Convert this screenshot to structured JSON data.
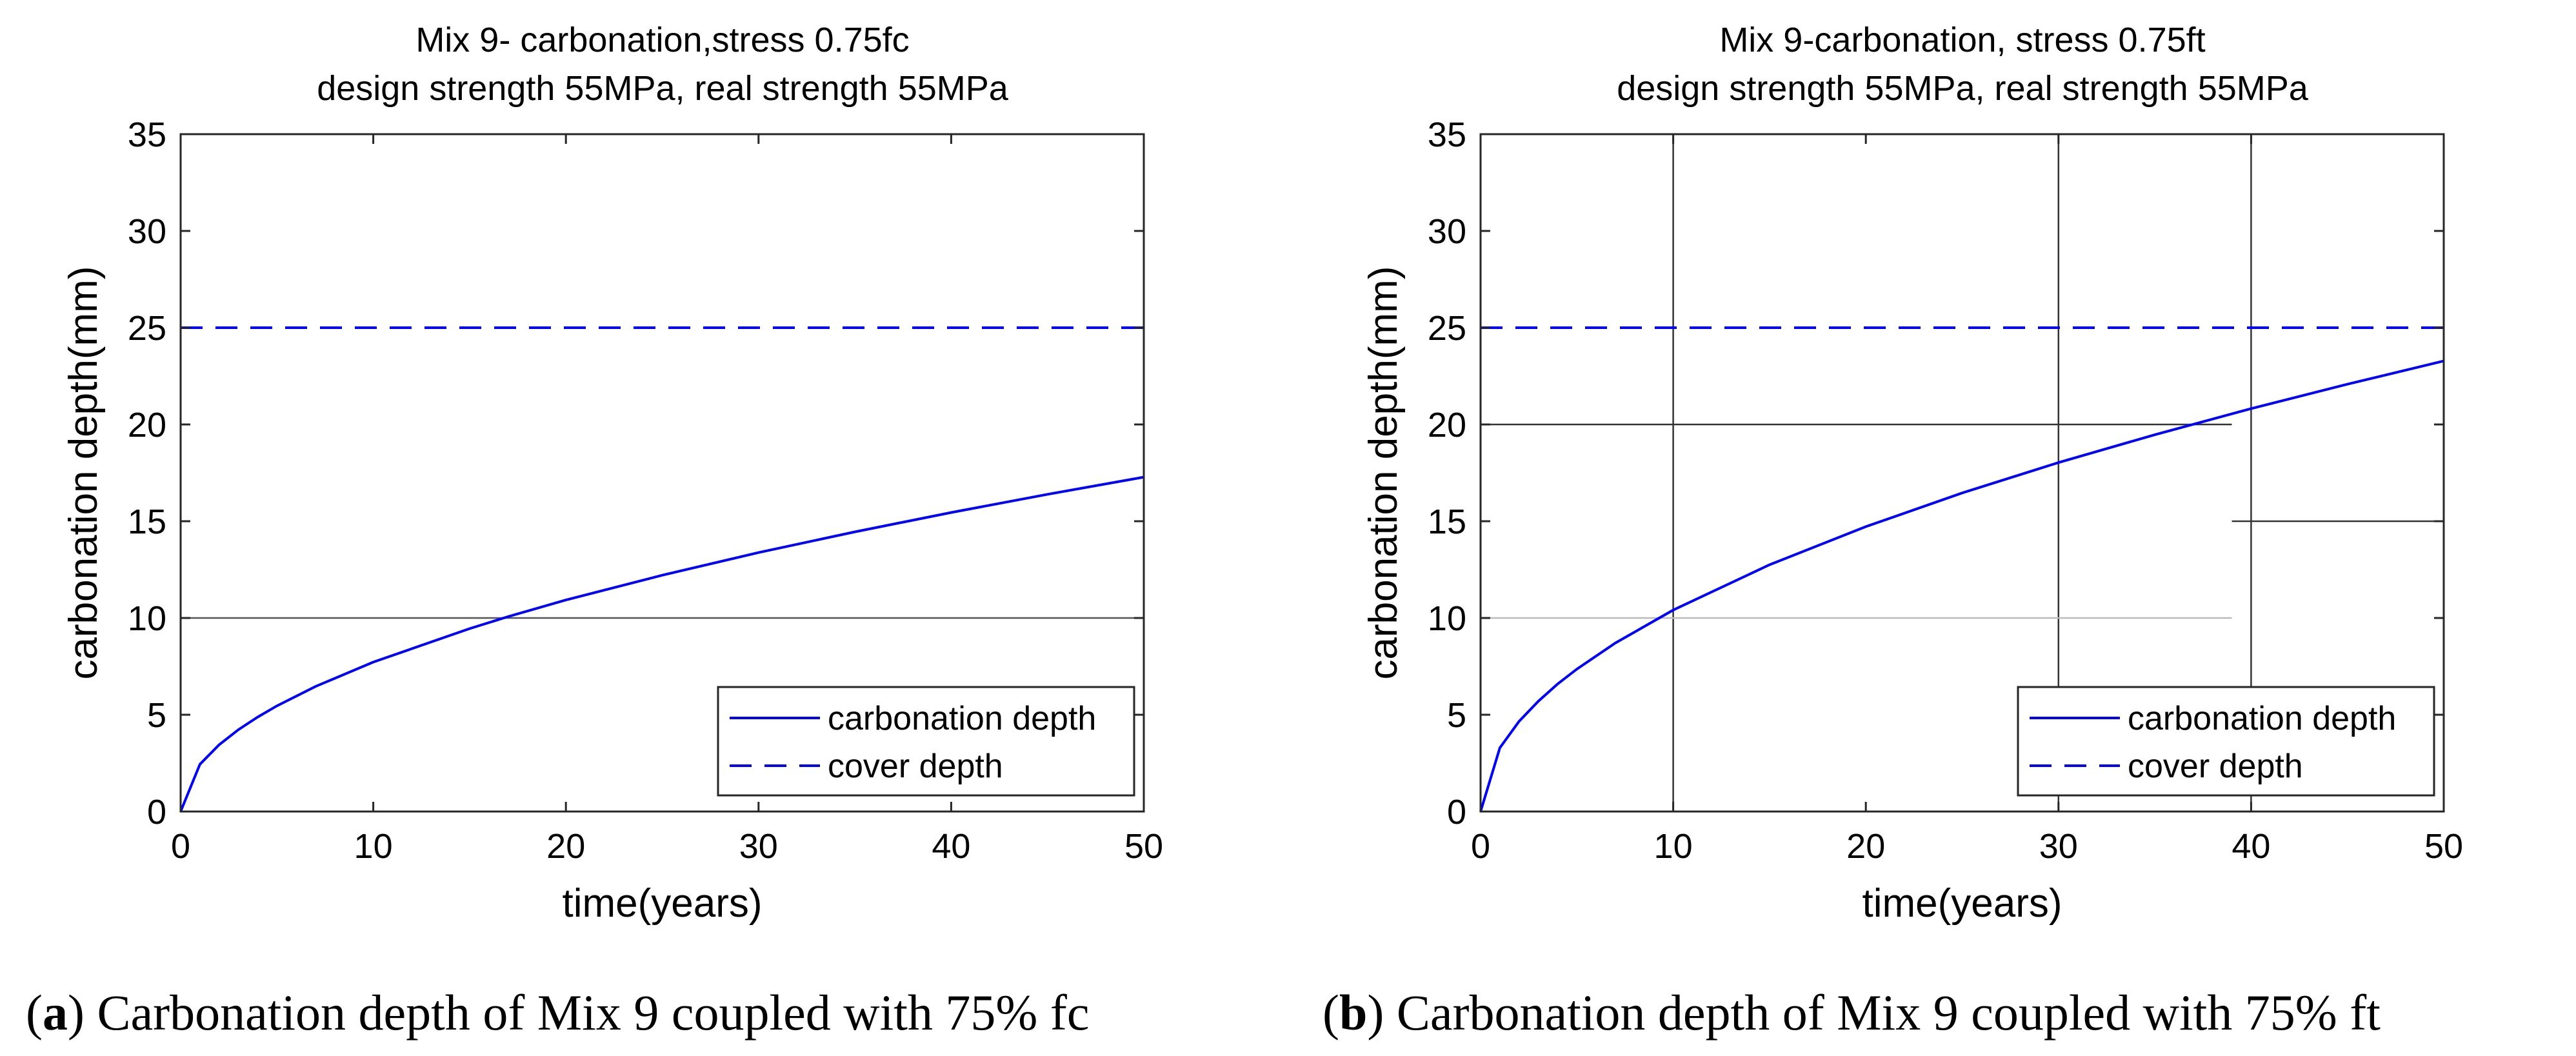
{
  "chart_data": [
    {
      "type": "line",
      "title": [
        "Mix 9- carbonation,stress 0.75fc",
        "design strength 55MPa, real strength 55MPa"
      ],
      "xlabel": "time(years)",
      "ylabel": "carbonation depth(mm)",
      "xlim": [
        0,
        50
      ],
      "ylim": [
        0,
        35
      ],
      "xticks": [
        0,
        10,
        20,
        30,
        40,
        50
      ],
      "yticks": [
        0,
        5,
        10,
        15,
        20,
        25,
        30,
        35
      ],
      "grid": false,
      "legend_position": "bottom-right",
      "series": [
        {
          "name": "carbonation depth",
          "style": "solid",
          "color": "#0000ff",
          "x": [
            0,
            1,
            2,
            3,
            4,
            5,
            7,
            10,
            15,
            17,
            20,
            25,
            30,
            35,
            40,
            45,
            50
          ],
          "y": [
            0,
            2.44,
            3.45,
            4.23,
            4.88,
            5.46,
            6.46,
            7.72,
            9.45,
            10.07,
            10.93,
            12.21,
            13.38,
            14.45,
            15.45,
            16.39,
            17.28
          ]
        },
        {
          "name": "cover depth",
          "style": "dashed",
          "color": "#0000ff",
          "x": [
            0,
            50
          ],
          "y": [
            25,
            25
          ]
        }
      ],
      "annotations": [
        {
          "type": "hline",
          "y": 10,
          "x": [
            0,
            50
          ],
          "color": "#555555"
        }
      ]
    },
    {
      "type": "line",
      "title": [
        "Mix 9-carbonation, stress 0.75ft",
        "design strength 55MPa, real strength 55MPa"
      ],
      "xlabel": "time(years)",
      "ylabel": "carbonation depth(mm)",
      "xlim": [
        0,
        50
      ],
      "ylim": [
        0,
        35
      ],
      "xticks": [
        0,
        10,
        20,
        30,
        40,
        50
      ],
      "yticks": [
        0,
        5,
        10,
        15,
        20,
        25,
        30,
        35
      ],
      "grid": false,
      "legend_position": "bottom-right",
      "series": [
        {
          "name": "carbonation depth",
          "style": "solid",
          "color": "#0000ff",
          "x": [
            0,
            1,
            2,
            3,
            4,
            5,
            7,
            10,
            15,
            20,
            25,
            30,
            35,
            40,
            45,
            50
          ],
          "y": [
            0,
            3.29,
            4.66,
            5.7,
            6.59,
            7.36,
            8.71,
            10.41,
            12.75,
            14.72,
            16.46,
            18.03,
            19.47,
            20.82,
            22.08,
            23.28
          ]
        },
        {
          "name": "cover depth",
          "style": "dashed",
          "color": "#0000ff",
          "x": [
            0,
            50
          ],
          "y": [
            25,
            25
          ]
        }
      ],
      "annotations": [
        {
          "type": "vline",
          "x": 10,
          "y": [
            0,
            35
          ],
          "color": "#333333"
        },
        {
          "type": "vline",
          "x": 30,
          "y": [
            0,
            35
          ],
          "color": "#333333"
        },
        {
          "type": "vline",
          "x": 40,
          "y": [
            0,
            35
          ],
          "color": "#333333"
        },
        {
          "type": "hline",
          "y": 20,
          "x": [
            0,
            39
          ],
          "color": "#333333"
        },
        {
          "type": "hline",
          "y": 15,
          "x": [
            39,
            50
          ],
          "color": "#333333"
        },
        {
          "type": "hline",
          "y": 10,
          "x": [
            0,
            39
          ],
          "color": "#bbbbbb"
        }
      ]
    }
  ],
  "captions": [
    {
      "label": "a",
      "text": ") Carbonation depth of Mix 9 coupled with 75% fc"
    },
    {
      "label": "b",
      "text": ") Carbonation depth of Mix 9 coupled with 75% ft"
    }
  ]
}
